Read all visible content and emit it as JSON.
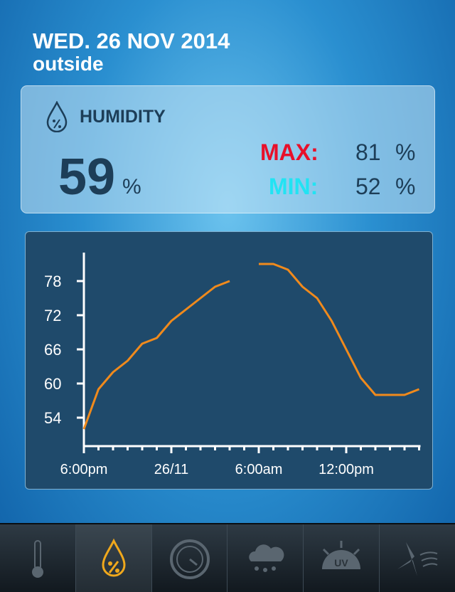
{
  "header": {
    "date": "WED. 26 NOV 2014",
    "location": "outside"
  },
  "humidity": {
    "label": "HUMIDITY",
    "value": "59",
    "unit": "%",
    "max_label": "MAX:",
    "max_value": 81,
    "max_unit": "%",
    "min_label": "MIN:",
    "min_value": 52,
    "min_unit": "%"
  },
  "chart_data": {
    "type": "line",
    "categories": [
      "6:00pm",
      null,
      null,
      null,
      null,
      null,
      "26/11",
      null,
      null,
      null,
      null,
      null,
      "6:00am",
      null,
      null,
      null,
      null,
      null,
      "12:00pm",
      null,
      null,
      null,
      null,
      null
    ],
    "series": [
      {
        "color": "#f08a1c",
        "values": [
          52,
          59,
          62,
          64,
          67,
          68,
          71,
          73,
          75,
          77,
          78,
          null,
          81,
          81,
          80,
          77,
          75,
          71,
          66,
          61,
          58,
          58,
          58,
          59
        ]
      }
    ],
    "ylim": [
      49,
      83
    ],
    "yticks": [
      54,
      60,
      66,
      72,
      78
    ]
  },
  "tabs": {
    "uv_label": "UV"
  }
}
